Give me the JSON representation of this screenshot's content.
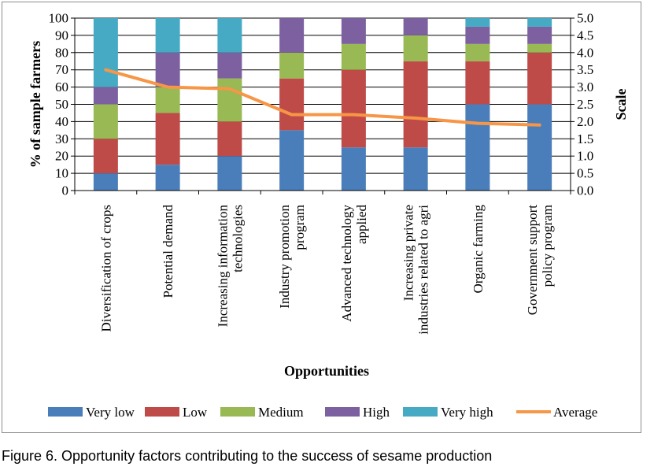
{
  "caption": "Figure 6. Opportunity factors contributing to the success of sesame production",
  "chart_data": {
    "type": "bar",
    "stacked": true,
    "title": "",
    "xlabel": "Opportunities",
    "ylabel": "% of sample farmers",
    "y2label": "Scale",
    "ylim": [
      0,
      100
    ],
    "y2lim": [
      0,
      5.0
    ],
    "yticks": [
      "0",
      "10",
      "20",
      "30",
      "40",
      "50",
      "60",
      "70",
      "80",
      "90",
      "100"
    ],
    "y2ticks": [
      "0.0",
      "0.5",
      "1.0",
      "1.5",
      "2.0",
      "2.5",
      "3.0",
      "3.5",
      "4.0",
      "4.5",
      "5.0"
    ],
    "grid": true,
    "legend_position": "bottom",
    "categories": [
      [
        "Diversification of crops"
      ],
      [
        "Potential demand"
      ],
      [
        "Increasing information",
        "technologies"
      ],
      [
        "Industry promotion",
        "program"
      ],
      [
        "Advanced technology",
        "applied"
      ],
      [
        "Increasing private",
        "industries related to agri"
      ],
      [
        "Organic farming"
      ],
      [
        "Government support",
        "policy program"
      ]
    ],
    "series": [
      {
        "name": "Very low",
        "color": "#4a7ebb",
        "values": [
          10,
          15,
          20,
          35,
          25,
          25,
          50,
          50
        ]
      },
      {
        "name": "Low",
        "color": "#be4b48",
        "values": [
          20,
          30,
          20,
          30,
          45,
          50,
          25,
          30
        ]
      },
      {
        "name": "Medium",
        "color": "#98b954",
        "values": [
          20,
          15,
          25,
          15,
          15,
          15,
          10,
          5
        ]
      },
      {
        "name": "High",
        "color": "#7d60a0",
        "values": [
          10,
          20,
          15,
          20,
          15,
          10,
          10,
          10
        ]
      },
      {
        "name": "Very high",
        "color": "#46aac5",
        "values": [
          40,
          20,
          20,
          0,
          0,
          0,
          5,
          5
        ]
      }
    ],
    "line_series": {
      "name": "Average",
      "color": "#f79646",
      "axis": "right",
      "values": [
        3.5,
        3.0,
        2.95,
        2.2,
        2.2,
        2.1,
        1.95,
        1.9
      ]
    }
  }
}
